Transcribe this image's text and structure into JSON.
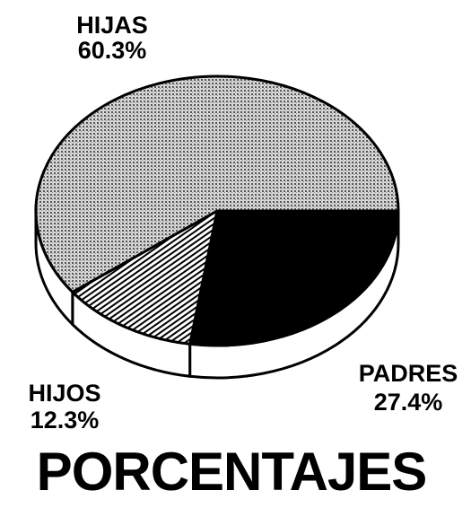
{
  "chart_data": {
    "type": "pie",
    "title": "PORCENTAJES",
    "categories": [
      "PADRES",
      "HIJOS",
      "HIJAS"
    ],
    "values": [
      27.4,
      12.3,
      60.3
    ],
    "value_labels": [
      "27.4%",
      "12.3%",
      "60.3%"
    ]
  }
}
